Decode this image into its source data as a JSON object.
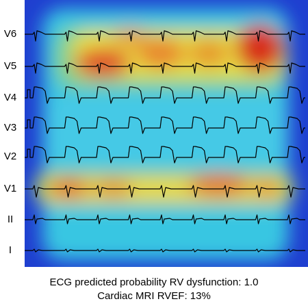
{
  "leads": [
    {
      "label": "V6"
    },
    {
      "label": "V5"
    },
    {
      "label": "V4"
    },
    {
      "label": "V3"
    },
    {
      "label": "V2"
    },
    {
      "label": "V1"
    },
    {
      "label": "II"
    },
    {
      "label": "I"
    }
  ],
  "caption": {
    "line1": "ECG predicted probability RV dysfunction: 1.0",
    "line2": "Cardiac MRI RVEF: 13%"
  },
  "colors": {
    "heatmap_low": "#1f3fd0",
    "heatmap_mid": "#37c8e6",
    "heatmap_high_yellow": "#e6dc3c",
    "heatmap_hot": "#d8321e",
    "trace": "#000000"
  }
}
